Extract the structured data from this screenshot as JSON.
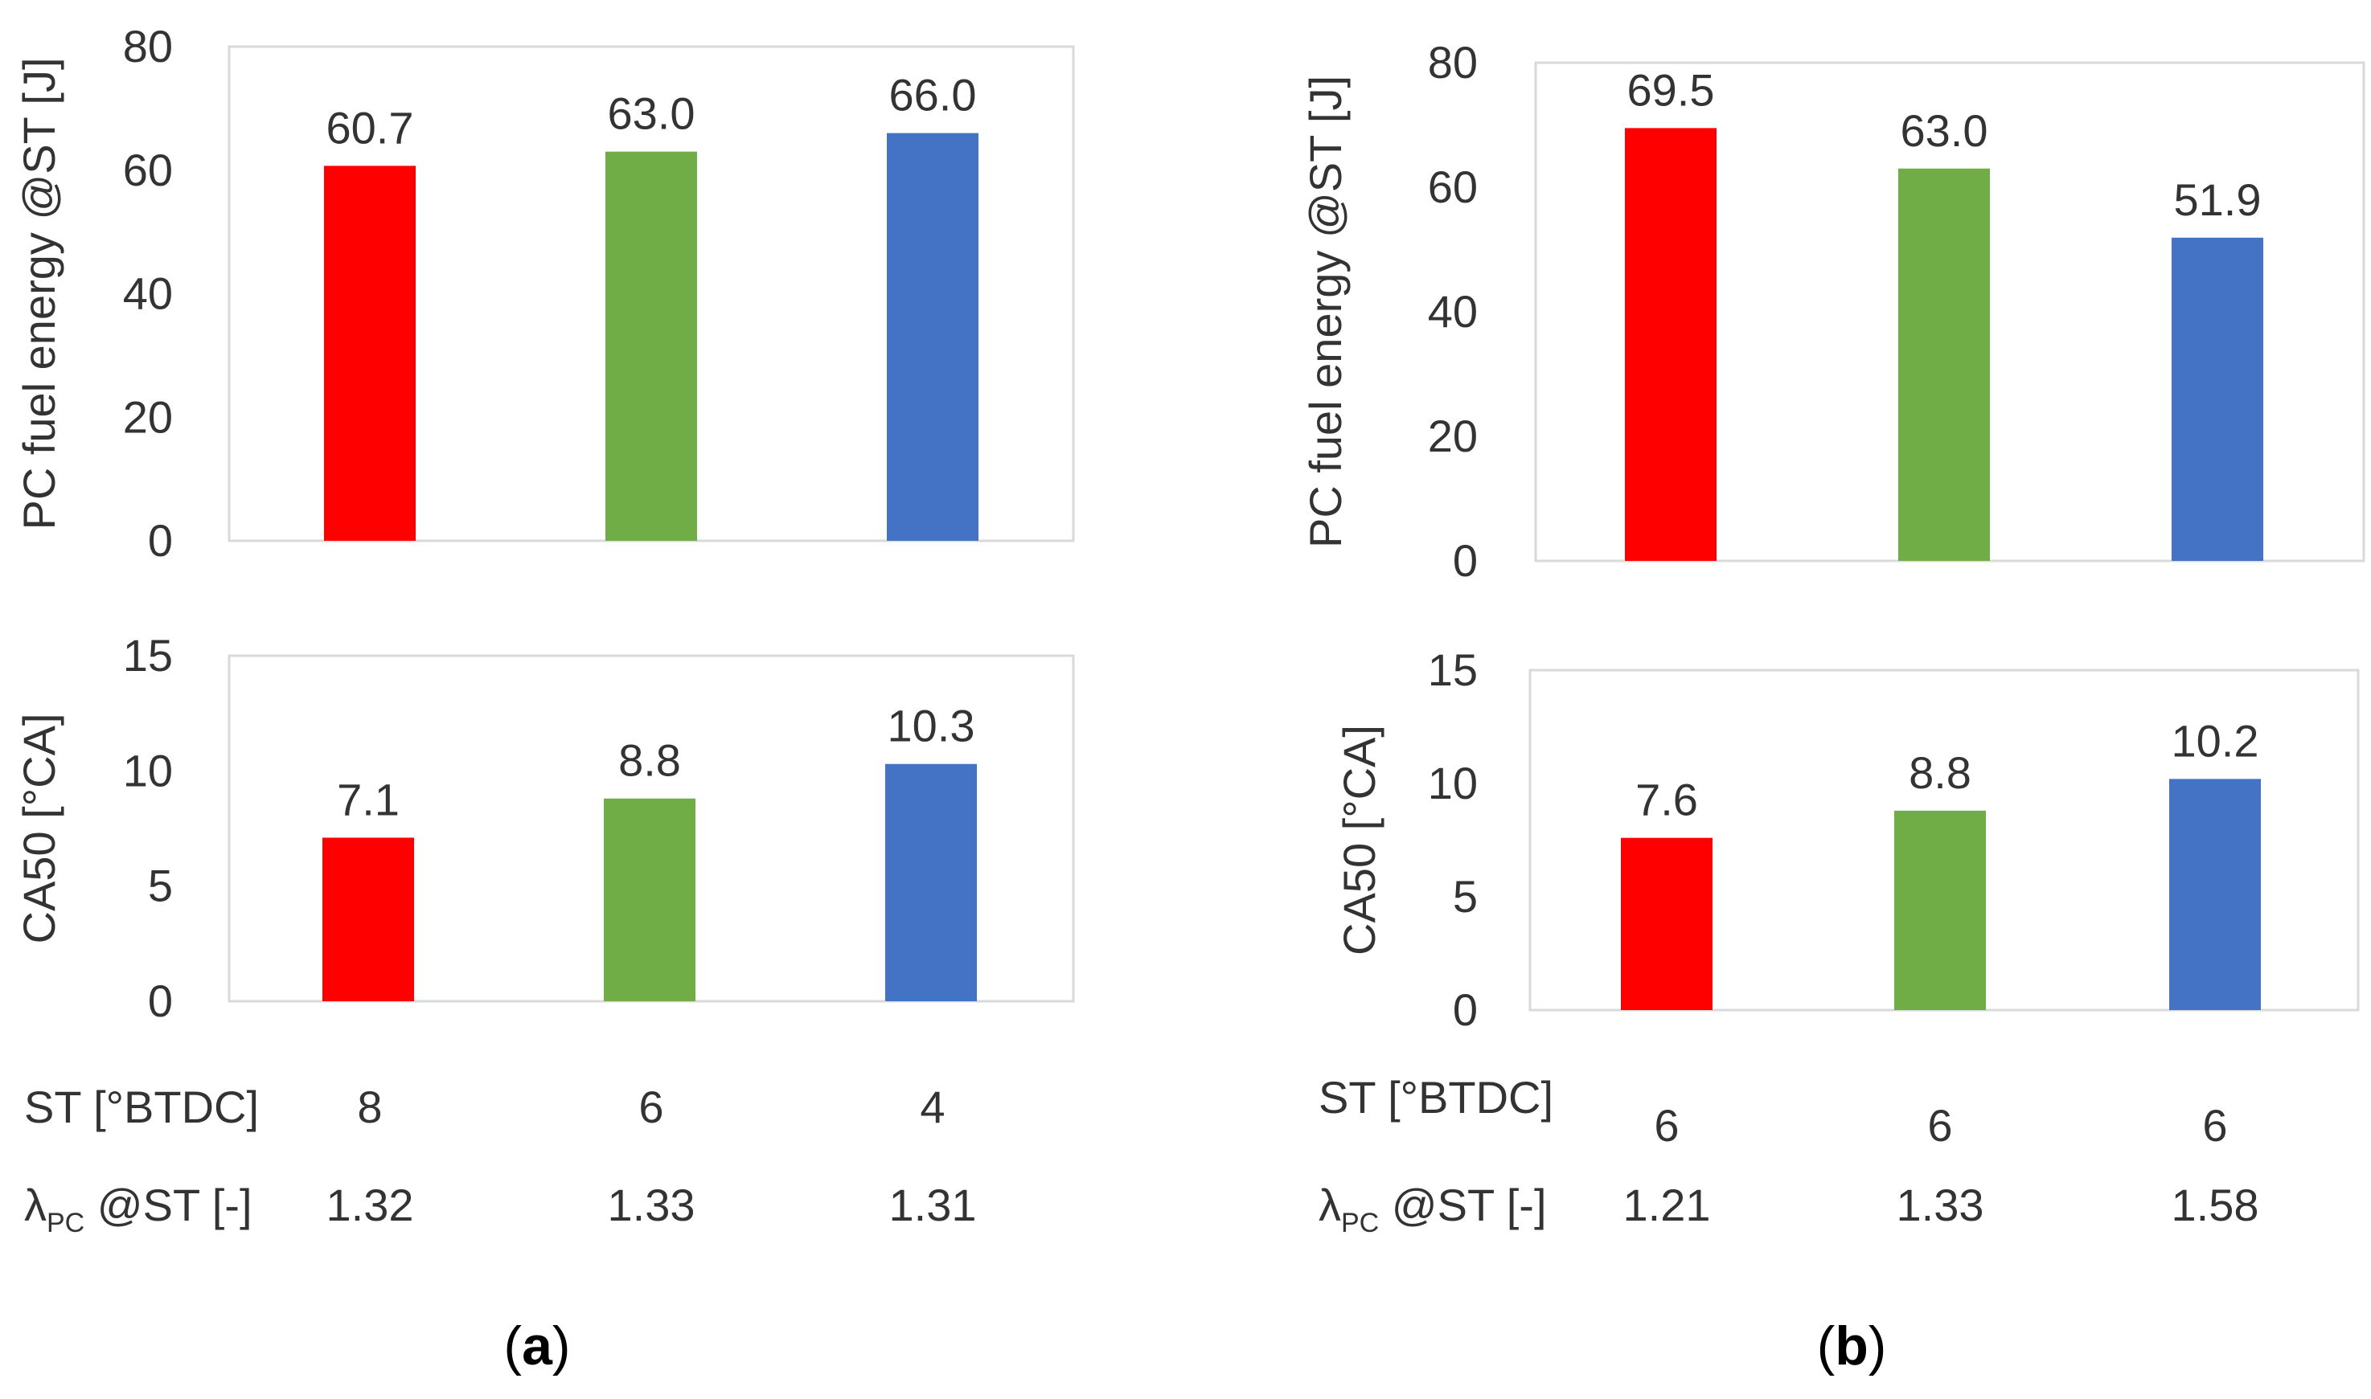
{
  "colors": {
    "red": "#FF0000",
    "green": "#70AD47",
    "blue": "#4472C4",
    "axis": "#D9D9D9",
    "text": "#333333"
  },
  "panels": [
    {
      "label_open": "(",
      "label_letter": "a",
      "label_close": ")",
      "row_st_label": "ST [°BTDC]",
      "row_lambda_symbol": "λ",
      "row_lambda_sub": "PC",
      "row_lambda_rest": " @ST [-]",
      "st_values": [
        "8",
        "6",
        "4"
      ],
      "lambda_values": [
        "1.32",
        "1.33",
        "1.31"
      ]
    },
    {
      "label_open": "(",
      "label_letter": "b",
      "label_close": ")",
      "row_st_label": "ST [°BTDC]",
      "row_lambda_symbol": "λ",
      "row_lambda_sub": "PC",
      "row_lambda_rest": " @ST [-]",
      "st_values": [
        "6",
        "6",
        "6"
      ],
      "lambda_values": [
        "1.21",
        "1.33",
        "1.58"
      ]
    }
  ],
  "chart_data": [
    {
      "type": "bar",
      "panel": "a",
      "position": "top",
      "ylabel": "PC fuel energy @ST [J]",
      "ylim": [
        0,
        80
      ],
      "yticks": [
        0,
        20,
        40,
        60,
        80
      ],
      "grid": false,
      "values": [
        60.7,
        63.0,
        66.0
      ],
      "labels": [
        "60.7",
        "63.0",
        "66.0"
      ],
      "colors": [
        "#FF0000",
        "#70AD47",
        "#4472C4"
      ]
    },
    {
      "type": "bar",
      "panel": "a",
      "position": "bottom",
      "ylabel": "CA50 [°CA]",
      "ylim": [
        0,
        15
      ],
      "yticks": [
        0,
        5,
        10,
        15
      ],
      "grid": false,
      "values": [
        7.1,
        8.8,
        10.3
      ],
      "labels": [
        "7.1",
        "8.8",
        "10.3"
      ],
      "colors": [
        "#FF0000",
        "#70AD47",
        "#4472C4"
      ]
    },
    {
      "type": "bar",
      "panel": "b",
      "position": "top",
      "ylabel": "PC fuel energy @ST [J]",
      "ylim": [
        0,
        80
      ],
      "yticks": [
        0,
        20,
        40,
        60,
        80
      ],
      "grid": false,
      "values": [
        69.5,
        63.0,
        51.9
      ],
      "labels": [
        "69.5",
        "63.0",
        "51.9"
      ],
      "colors": [
        "#FF0000",
        "#70AD47",
        "#4472C4"
      ]
    },
    {
      "type": "bar",
      "panel": "b",
      "position": "bottom",
      "ylabel": "CA50 [°CA]",
      "ylim": [
        0,
        15
      ],
      "yticks": [
        0,
        5,
        10,
        15
      ],
      "grid": false,
      "values": [
        7.6,
        8.8,
        10.2
      ],
      "labels": [
        "7.6",
        "8.8",
        "10.2"
      ],
      "colors": [
        "#FF0000",
        "#70AD47",
        "#4472C4"
      ]
    }
  ]
}
